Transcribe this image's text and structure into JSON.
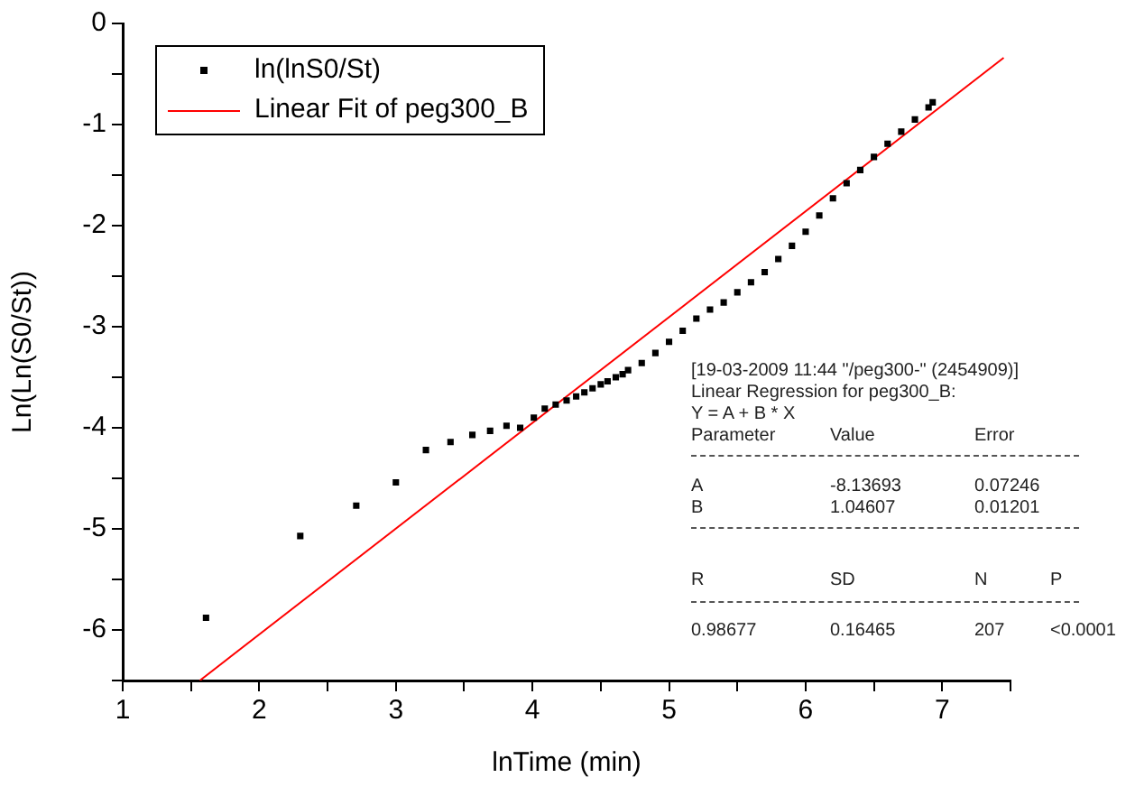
{
  "chart_data": {
    "type": "scatter",
    "xlabel": "lnTime (min)",
    "ylabel": "Ln(Ln(S0/St))",
    "xlim": [
      1,
      7.5
    ],
    "ylim": [
      -6.5,
      0
    ],
    "xticks": [
      1,
      {
        "value": 1.5,
        "label": null
      },
      2,
      {
        "value": 2.5,
        "label": null
      },
      3,
      {
        "value": 3.5,
        "label": null
      },
      4,
      {
        "value": 4.5,
        "label": null
      },
      5,
      {
        "value": 5.5,
        "label": null
      },
      6,
      {
        "value": 6.5,
        "label": null
      },
      7,
      {
        "value": 7.5,
        "label": null
      }
    ],
    "yticks": [
      {
        "value": -6.5,
        "label": null
      },
      -6,
      {
        "value": -5.5,
        "label": null
      },
      -5,
      {
        "value": -4.5,
        "label": null
      },
      -4,
      {
        "value": -3.5,
        "label": null
      },
      -3,
      {
        "value": -2.5,
        "label": null
      },
      -2,
      {
        "value": -1.5,
        "label": null
      },
      -1,
      {
        "value": -0.5,
        "label": null
      },
      0
    ],
    "grid": false,
    "legend": "top left",
    "marker": "square",
    "series": [
      {
        "name": "ln(lnS0/St)",
        "color": "#000000",
        "x": [
          1.61,
          2.3,
          2.71,
          3.0,
          3.22,
          3.4,
          3.56,
          3.69,
          3.81,
          3.91,
          4.01,
          4.09,
          4.17,
          4.25,
          4.32,
          4.38,
          4.44,
          4.5,
          4.55,
          4.61,
          4.66,
          4.7,
          4.8,
          4.9,
          5.0,
          5.1,
          5.2,
          5.3,
          5.4,
          5.5,
          5.6,
          5.7,
          5.8,
          5.9,
          6.0,
          6.1,
          6.2,
          6.3,
          6.4,
          6.5,
          6.6,
          6.7,
          6.8,
          6.9,
          6.93
        ],
        "values": [
          -5.88,
          -5.07,
          -4.77,
          -4.54,
          -4.22,
          -4.14,
          -4.07,
          -4.03,
          -3.98,
          -4.0,
          -3.9,
          -3.81,
          -3.77,
          -3.73,
          -3.69,
          -3.65,
          -3.61,
          -3.57,
          -3.54,
          -3.5,
          -3.47,
          -3.43,
          -3.36,
          -3.26,
          -3.15,
          -3.04,
          -2.92,
          -2.83,
          -2.76,
          -2.66,
          -2.56,
          -2.46,
          -2.33,
          -2.2,
          -2.06,
          -1.9,
          -1.73,
          -1.58,
          -1.45,
          -1.32,
          -1.19,
          -1.07,
          -0.95,
          -0.83,
          -0.78
        ]
      },
      {
        "name": "Linear Fit of peg300_B",
        "type": "line",
        "color": "#ff0000",
        "marker": "none",
        "x": [
          1.565,
          7.45
        ],
        "values": [
          -6.5,
          -0.34
        ]
      }
    ],
    "annotations": [
      "[19-03-2009 11:44 \"/peg300-\" (2454909)]",
      "Linear Regression for peg300_B:",
      "Y = A + B * X",
      "Parameter",
      "Value",
      "Error",
      "A",
      "-8.13693",
      "0.07246",
      "B",
      "1.04607",
      "0.01201",
      "R",
      "SD",
      "N",
      "P",
      "0.98677",
      "0.16465",
      "207",
      "<0.0001"
    ]
  }
}
